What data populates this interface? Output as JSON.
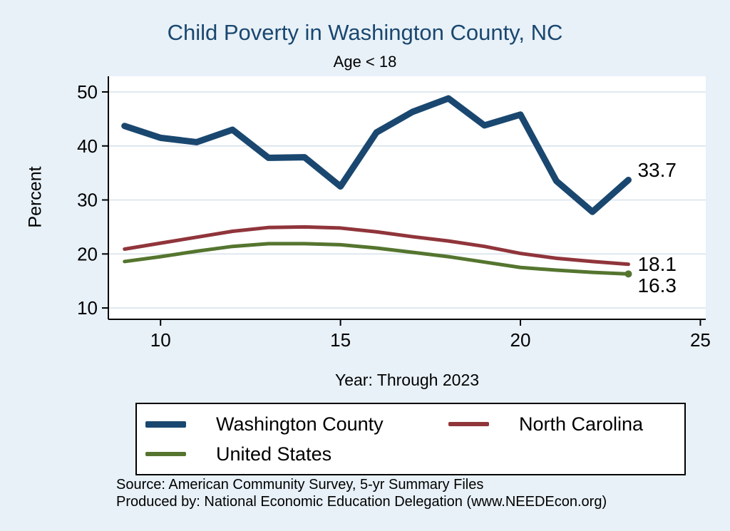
{
  "colors": {
    "background": "#e8f1f8",
    "plot_background": "#ffffff",
    "grid": "#d3dfe9",
    "axis": "#000000",
    "title": "#1a476f"
  },
  "chart_data": {
    "type": "line",
    "title": "Child Poverty in Washington County, NC",
    "subtitle": "Age < 18",
    "xlabel": "Year: Through 2023",
    "ylabel": "Percent",
    "x": [
      9,
      10,
      11,
      12,
      13,
      14,
      15,
      16,
      17,
      18,
      19,
      20,
      21,
      22,
      23
    ],
    "x_ticks": [
      10,
      15,
      20,
      25
    ],
    "y_ticks": [
      10,
      20,
      30,
      40,
      50
    ],
    "xlim": [
      8.55,
      25.15
    ],
    "ylim": [
      7.9,
      52.9
    ],
    "grid": "horizontal-only",
    "legend_position": "bottom",
    "series": [
      {
        "name": "Washington County",
        "color": "#1a476f",
        "end_label": "33.7",
        "end_dot": false,
        "values": [
          43.7,
          41.5,
          40.7,
          43.0,
          37.8,
          37.9,
          32.5,
          42.5,
          46.3,
          48.8,
          43.8,
          45.8,
          33.5,
          27.8,
          33.7
        ]
      },
      {
        "name": "North Carolina",
        "color": "#90353b",
        "end_label": "18.1",
        "end_dot": false,
        "values": [
          20.9,
          22.0,
          23.1,
          24.2,
          24.9,
          25.0,
          24.8,
          24.1,
          23.2,
          22.4,
          21.4,
          20.1,
          19.2,
          18.6,
          18.1
        ]
      },
      {
        "name": "United States",
        "color": "#55752f",
        "end_label": "16.3",
        "end_dot": true,
        "values": [
          18.6,
          19.5,
          20.5,
          21.4,
          21.9,
          21.9,
          21.7,
          21.1,
          20.3,
          19.5,
          18.5,
          17.5,
          17.0,
          16.6,
          16.3
        ]
      }
    ]
  },
  "notes": {
    "source": "Source: American Community Survey, 5-yr Summary Files",
    "produced_by": "Produced by: National Economic Education Delegation (www.NEEDEcon.org)"
  }
}
